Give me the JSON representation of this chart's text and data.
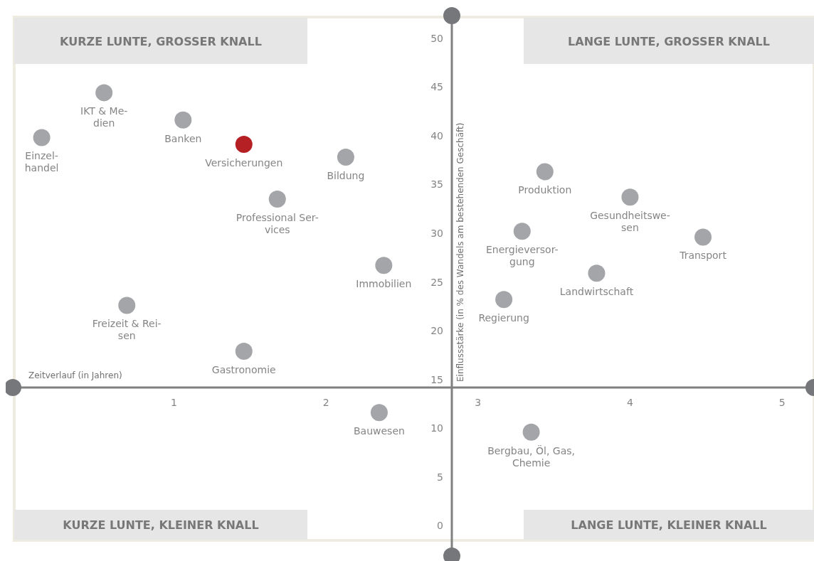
{
  "chart_data": {
    "type": "scatter",
    "xlabel": "Zeitverlauf (in Jahren)",
    "ylabel": "Einflussstärke (in % des Wandels am bestehenden Geschäft)",
    "xlim": [
      -0.06,
      5.21
    ],
    "ylim": [
      -3.1,
      52.3
    ],
    "xticks": [
      1,
      2,
      3,
      4,
      5
    ],
    "yticks": [
      0,
      5,
      10,
      15,
      20,
      25,
      30,
      35,
      40,
      45,
      50
    ],
    "grid": false,
    "legend": false,
    "marker": "circle",
    "series": [
      {
        "color": "#a4a5a9",
        "x": [
          0.13,
          0.54,
          1.06,
          2.13,
          1.68,
          2.38,
          0.69,
          1.46,
          2.35,
          3.35,
          3.44,
          4.0,
          3.29,
          4.48,
          3.78,
          3.17
        ],
        "values": [
          39.8,
          44.4,
          41.6,
          37.8,
          33.5,
          26.7,
          22.6,
          17.9,
          11.6,
          9.6,
          36.3,
          33.7,
          30.2,
          29.6,
          25.9,
          23.2
        ]
      },
      {
        "color": "#b52025",
        "x": [
          1.46
        ],
        "values": [
          39.1
        ]
      }
    ],
    "annotations": [
      "KURZE LUNTE, GROSSER KNALL",
      "LANGE LUNTE, GROSSER KNALL",
      "KURZE LUNTE, KLEINER KNALL",
      "LANGE LUNTE, KLEINER KNALL",
      {
        "text": "Einzel-\nhandel",
        "x": 0.13,
        "y": 39.8
      },
      {
        "text": "IKT & Me-\ndien",
        "x": 0.54,
        "y": 44.4
      },
      {
        "text": "Banken",
        "x": 1.06,
        "y": 41.6
      },
      {
        "text": "Versicherungen",
        "x": 1.46,
        "y": 39.1
      },
      {
        "text": "Bildung",
        "x": 2.13,
        "y": 37.8
      },
      {
        "text": "Professional Ser-\nvices",
        "x": 1.68,
        "y": 33.5
      },
      {
        "text": "Immobilien",
        "x": 2.38,
        "y": 26.7
      },
      {
        "text": "Freizeit & Rei-\nsen",
        "x": 0.69,
        "y": 22.6
      },
      {
        "text": "Gastronomie",
        "x": 1.46,
        "y": 17.9
      },
      {
        "text": "Bauwesen",
        "x": 2.35,
        "y": 11.6
      },
      {
        "text": "Bergbau, Öl, Gas,\nChemie",
        "x": 3.35,
        "y": 9.6
      },
      {
        "text": "Produktion",
        "x": 3.44,
        "y": 36.3
      },
      {
        "text": "Gesundheitswe-\nsen",
        "x": 4.0,
        "y": 33.7
      },
      {
        "text": "Energieversor-\ngung",
        "x": 3.29,
        "y": 30.2
      },
      {
        "text": "Transport",
        "x": 4.48,
        "y": 29.6
      },
      {
        "text": "Landwirtschaft",
        "x": 3.78,
        "y": 25.9
      },
      {
        "text": "Regierung",
        "x": 3.17,
        "y": 23.2
      }
    ]
  }
}
